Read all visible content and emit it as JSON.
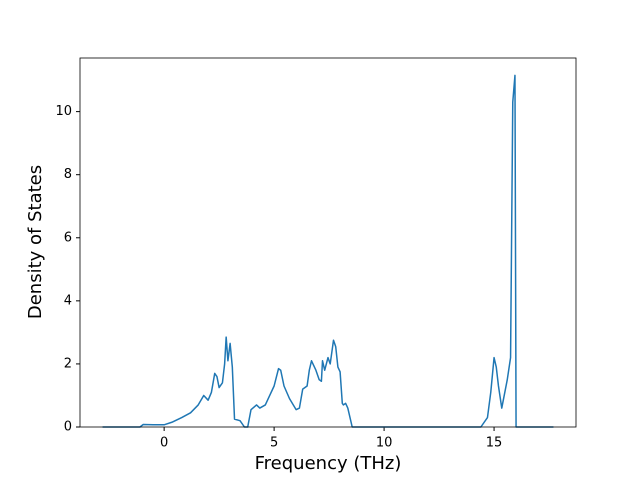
{
  "chart_data": {
    "type": "line",
    "xlabel": "Frequency (THz)",
    "ylabel": "Density of States",
    "x": [
      -2.8,
      -1.1,
      -0.95,
      -0.5,
      0,
      0.35,
      0.8,
      1.2,
      1.55,
      1.8,
      2.0,
      2.15,
      2.3,
      2.4,
      2.5,
      2.65,
      2.75,
      2.82,
      2.9,
      3.0,
      3.1,
      3.2,
      3.45,
      3.65,
      3.8,
      3.95,
      4.2,
      4.35,
      4.6,
      4.8,
      5.0,
      5.2,
      5.3,
      5.45,
      5.7,
      6.0,
      6.15,
      6.3,
      6.5,
      6.6,
      6.7,
      6.9,
      7.05,
      7.15,
      7.2,
      7.3,
      7.45,
      7.55,
      7.7,
      7.8,
      7.9,
      8.0,
      8.1,
      8.15,
      8.25,
      8.35,
      8.55,
      14.4,
      14.7,
      14.85,
      15.0,
      15.1,
      15.2,
      15.35,
      15.6,
      15.75,
      15.85,
      15.95,
      16.0,
      17.7
    ],
    "series": [
      {
        "name": "DOS",
        "color": "#1f77b4",
        "values": [
          0,
          0,
          0.08,
          0.07,
          0.07,
          0.15,
          0.3,
          0.45,
          0.7,
          1.0,
          0.85,
          1.1,
          1.7,
          1.6,
          1.25,
          1.4,
          2.0,
          2.85,
          2.1,
          2.65,
          1.9,
          0.25,
          0.2,
          0,
          0,
          0.55,
          0.7,
          0.6,
          0.7,
          1.0,
          1.3,
          1.85,
          1.8,
          1.3,
          0.9,
          0.55,
          0.6,
          1.2,
          1.3,
          1.8,
          2.1,
          1.8,
          1.5,
          1.45,
          2.1,
          1.8,
          2.2,
          2.0,
          2.75,
          2.55,
          1.9,
          1.75,
          0.75,
          0.7,
          0.75,
          0.6,
          0,
          0,
          0.3,
          1.1,
          2.2,
          1.9,
          1.3,
          0.6,
          1.5,
          2.2,
          10.3,
          11.15,
          0,
          0
        ]
      }
    ],
    "xlim": [
      -3.825,
      18.725
    ],
    "xticks": [
      0,
      5,
      10,
      15
    ],
    "ylim": [
      0,
      11.7
    ],
    "yticks": [
      0,
      2,
      4,
      6,
      8,
      10
    ]
  }
}
